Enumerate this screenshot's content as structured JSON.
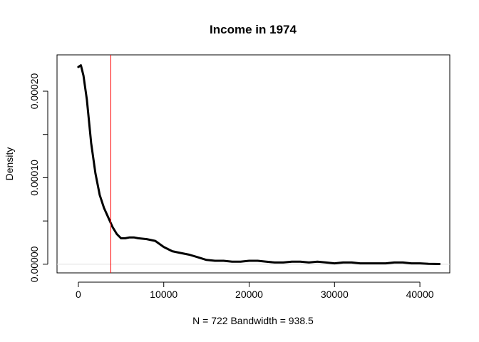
{
  "chart_data": {
    "type": "line",
    "title": "Income in 1974",
    "xlabel": "N = 722   Bandwidth = 938.5",
    "ylabel": "Density",
    "xlim": [
      -2500,
      43500
    ],
    "ylim": [
      -1e-05,
      0.000242
    ],
    "x_ticks": [
      0,
      10000,
      20000,
      30000,
      40000
    ],
    "x_tick_labels": [
      "0",
      "10000",
      "20000",
      "30000",
      "40000"
    ],
    "y_ticks": [
      0,
      5e-05,
      0.0001,
      0.00015,
      0.0002
    ],
    "y_tick_labels": [
      "0.00000",
      "",
      "0.00010",
      "",
      "0.00020"
    ],
    "grid": false,
    "baseline": 0,
    "reference_line": {
      "x": 3800,
      "color": "#ff0000"
    },
    "series": [
      {
        "color": "#000000",
        "x": [
          0,
          300,
          600,
          1000,
          1500,
          2000,
          2500,
          3000,
          3500,
          4000,
          4500,
          5000,
          5500,
          6000,
          6500,
          7000,
          8000,
          9000,
          10000,
          11000,
          12000,
          13000,
          14000,
          15000,
          16000,
          17000,
          18000,
          19000,
          20000,
          21000,
          22000,
          23000,
          24000,
          25000,
          26000,
          27000,
          28000,
          29000,
          30000,
          31000,
          32000,
          33000,
          34000,
          35000,
          36000,
          37000,
          38000,
          39000,
          40000,
          41000,
          42300
        ],
        "y": [
          0.000228,
          0.00023,
          0.000218,
          0.00019,
          0.00014,
          0.000105,
          8e-05,
          6.5e-05,
          5.4e-05,
          4.3e-05,
          3.5e-05,
          3e-05,
          3e-05,
          3.1e-05,
          3.1e-05,
          3e-05,
          2.9e-05,
          2.7e-05,
          2e-05,
          1.5e-05,
          1.3e-05,
          1.1e-05,
          8e-06,
          5e-06,
          4e-06,
          4e-06,
          3e-06,
          3e-06,
          4e-06,
          4e-06,
          3e-06,
          2e-06,
          2e-06,
          3e-06,
          3e-06,
          2e-06,
          3e-06,
          2e-06,
          1e-06,
          2e-06,
          2e-06,
          1e-06,
          1e-06,
          1e-06,
          1e-06,
          2e-06,
          2e-06,
          1e-06,
          1e-06,
          5e-07,
          3e-07
        ]
      }
    ]
  }
}
